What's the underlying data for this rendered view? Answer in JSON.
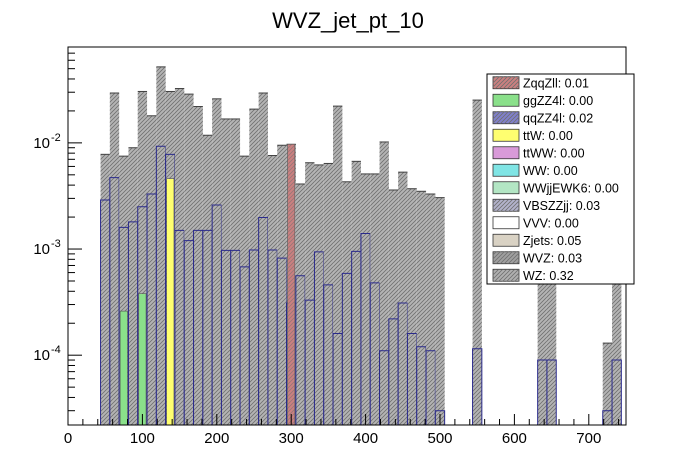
{
  "chart_data": {
    "type": "bar",
    "subtype": "stacked-histogram",
    "title": "WVZ_jet_pt_10",
    "xlabel": "",
    "ylabel": "",
    "x_scale": "linear",
    "y_scale": "log",
    "xlim": [
      0,
      750
    ],
    "ylim": [
      2.2e-05,
      0.08
    ],
    "bin_width": 12.5,
    "grid": false,
    "legend_position": "top-right",
    "x_ticks": [
      {
        "value": 0,
        "label": "0"
      },
      {
        "value": 100,
        "label": "100"
      },
      {
        "value": 200,
        "label": "200"
      },
      {
        "value": 300,
        "label": "300"
      },
      {
        "value": 400,
        "label": "400"
      },
      {
        "value": 500,
        "label": "500"
      },
      {
        "value": 600,
        "label": "600"
      },
      {
        "value": 700,
        "label": "700"
      }
    ],
    "y_ticks": [
      {
        "value": 0.0001,
        "base": "10",
        "exp": "-4"
      },
      {
        "value": 0.001,
        "base": "10",
        "exp": "-3"
      },
      {
        "value": 0.01,
        "base": "10",
        "exp": "-2"
      }
    ],
    "legend": [
      {
        "label": "ZqqZll: 0.01",
        "color": "#cc8080",
        "hatch": true
      },
      {
        "label": "ggZZ4l: 0.00",
        "color": "#8ae08a",
        "hatch": false
      },
      {
        "label": "qqZZ4l: 0.02",
        "color": "#8080cc",
        "hatch": true
      },
      {
        "label": "ttW: 0.00",
        "color": "#ffff70",
        "hatch": false
      },
      {
        "label": "ttWW: 0.00",
        "color": "#d99ad9",
        "hatch": false
      },
      {
        "label": "WW: 0.00",
        "color": "#80e5e5",
        "hatch": false
      },
      {
        "label": "WWjjEWK6: 0.00",
        "color": "#b3e6c4",
        "hatch": false
      },
      {
        "label": "VBSZZjj: 0.03",
        "color": "#b3b3cc",
        "hatch": true
      },
      {
        "label": "VVV: 0.00",
        "color": "#ffffff",
        "hatch": false
      },
      {
        "label": "Zjets: 0.05",
        "color": "#d9d2c4",
        "hatch": false
      },
      {
        "label": "WVZ: 0.03",
        "color": "#a0a0a0",
        "hatch": true
      },
      {
        "label": "WZ: 0.32",
        "color": "#b0b0b0",
        "hatch": true
      }
    ],
    "bins": [
      {
        "x": 43.75,
        "total": 0.0078,
        "blue": 0.0029,
        "special": null
      },
      {
        "x": 56.25,
        "total": 0.0295,
        "blue": 0.0047,
        "special": null
      },
      {
        "x": 68.75,
        "total": 0.0075,
        "blue": 0.0016,
        "special": {
          "series": "ggZZ4l",
          "value": 0.00026
        }
      },
      {
        "x": 81.25,
        "total": 0.009,
        "blue": 0.0018,
        "special": null
      },
      {
        "x": 93.75,
        "total": 0.0305,
        "blue": 0.0025,
        "special": {
          "series": "ggZZ4l",
          "value": 0.00038
        }
      },
      {
        "x": 106.25,
        "total": 0.018,
        "blue": 0.0033,
        "special": null
      },
      {
        "x": 118.75,
        "total": 0.052,
        "blue": 0.0093,
        "special": null
      },
      {
        "x": 131.25,
        "total": 0.0305,
        "blue": 0.0078,
        "special": {
          "series": "ttW",
          "value": 0.0046
        }
      },
      {
        "x": 143.75,
        "total": 0.0325,
        "blue": 0.0015,
        "special": null
      },
      {
        "x": 156.25,
        "total": 0.0288,
        "blue": 0.0012,
        "special": null
      },
      {
        "x": 168.75,
        "total": 0.022,
        "blue": 0.0015,
        "special": null
      },
      {
        "x": 181.25,
        "total": 0.0118,
        "blue": 0.0015,
        "special": null
      },
      {
        "x": 193.75,
        "total": 0.026,
        "blue": 0.0026,
        "special": null
      },
      {
        "x": 206.25,
        "total": 0.0168,
        "blue": 0.00097,
        "special": null
      },
      {
        "x": 218.75,
        "total": 0.0168,
        "blue": 0.00097,
        "special": null
      },
      {
        "x": 231.25,
        "total": 0.0075,
        "blue": 0.00068,
        "special": null
      },
      {
        "x": 243.75,
        "total": 0.0208,
        "blue": 0.00098,
        "special": null
      },
      {
        "x": 256.25,
        "total": 0.0295,
        "blue": 0.00198,
        "special": null
      },
      {
        "x": 268.75,
        "total": 0.0076,
        "blue": 0.00098,
        "special": null
      },
      {
        "x": 281.25,
        "total": 0.0095,
        "blue": 0.00082,
        "special": null
      },
      {
        "x": 293.75,
        "total": 0.0097,
        "blue": 0.00031,
        "special": {
          "series": "ZqqZll",
          "value": 0.0097
        }
      },
      {
        "x": 306.25,
        "total": 0.0041,
        "blue": 0.00056,
        "special": null
      },
      {
        "x": 318.75,
        "total": 0.0065,
        "blue": 0.00033,
        "special": null
      },
      {
        "x": 331.25,
        "total": 0.0062,
        "blue": 0.00094,
        "special": null
      },
      {
        "x": 343.75,
        "total": 0.0064,
        "blue": 0.00046,
        "special": null
      },
      {
        "x": 356.25,
        "total": 0.0222,
        "blue": 0.00016,
        "special": null
      },
      {
        "x": 368.75,
        "total": 0.0043,
        "blue": 0.00059,
        "special": null
      },
      {
        "x": 381.25,
        "total": 0.0067,
        "blue": 0.00095,
        "special": null
      },
      {
        "x": 393.75,
        "total": 0.0051,
        "blue": 0.0014,
        "special": null
      },
      {
        "x": 406.25,
        "total": 0.0051,
        "blue": 0.00048,
        "special": null
      },
      {
        "x": 418.75,
        "total": 0.0102,
        "blue": 0.00011,
        "special": null
      },
      {
        "x": 431.25,
        "total": 0.0036,
        "blue": 0.00022,
        "special": null
      },
      {
        "x": 443.75,
        "total": 0.0053,
        "blue": 0.00031,
        "special": null
      },
      {
        "x": 456.25,
        "total": 0.0037,
        "blue": 0.00016,
        "special": null
      },
      {
        "x": 468.75,
        "total": 0.0035,
        "blue": 0.00012,
        "special": null
      },
      {
        "x": 481.25,
        "total": 0.0033,
        "blue": 0.00011,
        "special": null
      },
      {
        "x": 493.75,
        "total": 0.00305,
        "blue": 3e-05,
        "special": null
      },
      {
        "x": 543.75,
        "total": 0.0253,
        "blue": 0.000115,
        "special": null
      },
      {
        "x": 631.25,
        "total": 0.022,
        "blue": 9e-05,
        "special": null
      },
      {
        "x": 643.75,
        "total": 0.022,
        "blue": 9e-05,
        "special": null
      },
      {
        "x": 718.75,
        "total": 0.00013,
        "blue": 3e-05,
        "special": null
      },
      {
        "x": 731.25,
        "total": 0.022,
        "blue": 9e-05,
        "special": null
      }
    ]
  }
}
